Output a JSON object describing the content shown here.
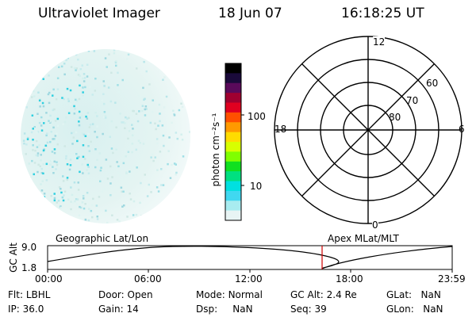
{
  "header": {
    "title": "Ultraviolet Imager",
    "date": "18 Jun 07",
    "time": "16:18:25 UT"
  },
  "colorbar": {
    "label": "photon cm⁻²s⁻¹",
    "ticks": [
      "100",
      "10"
    ],
    "colors": [
      "#000000",
      "#1a0a3a",
      "#5a0a5a",
      "#a00030",
      "#e00020",
      "#ff5000",
      "#ff9a00",
      "#ffdc00",
      "#d8ff00",
      "#80ff00",
      "#10e020",
      "#00e080",
      "#00e0e0",
      "#40d8f0",
      "#a8ecf0",
      "#e8f4f4"
    ]
  },
  "polar": {
    "mlt_labels": {
      "top": "12",
      "left": "18",
      "right": "6",
      "bottom": "0"
    },
    "lat_labels": [
      "60",
      "70",
      "80"
    ]
  },
  "timeline": {
    "left_title": "Geographic Lat/Lon",
    "right_title": "Apex MLat/MLT",
    "ylabel": "GC Alt",
    "ytick_top": "9.0",
    "ytick_bottom": "1.8",
    "xticks": [
      "00:00",
      "06:00",
      "12:00",
      "18:00",
      "23:59"
    ],
    "marker_color": "#d00000"
  },
  "footer": {
    "row1": [
      {
        "label": "Flt:",
        "value": "LBHL"
      },
      {
        "label": "Door:",
        "value": "Open"
      },
      {
        "label": "Mode:",
        "value": "Normal"
      },
      {
        "label": "GC Alt:",
        "value": "2.4 Re"
      },
      {
        "label": "GLat:",
        "value": "NaN"
      }
    ],
    "row2": [
      {
        "label": "IP:",
        "value": "36.0"
      },
      {
        "label": "Gain:",
        "value": "14"
      },
      {
        "label": "Dsp:",
        "value": "NaN"
      },
      {
        "label": "Seq:",
        "value": "39"
      },
      {
        "label": "GLon:",
        "value": "NaN"
      }
    ]
  }
}
